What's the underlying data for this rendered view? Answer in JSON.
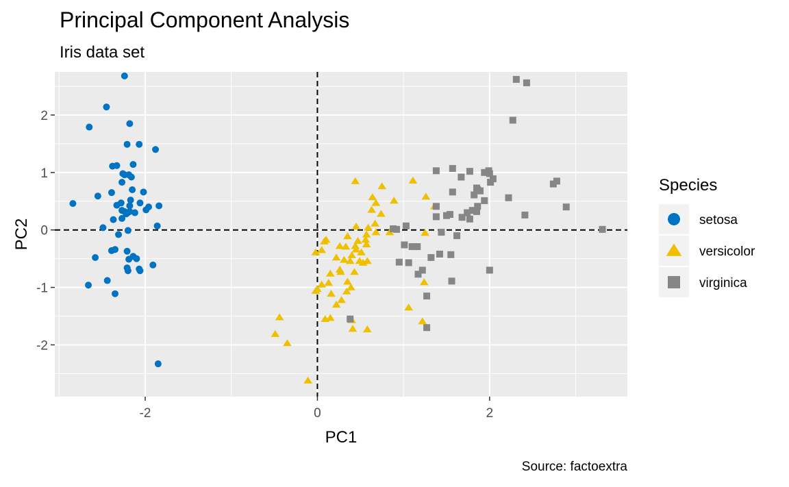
{
  "chart_data": {
    "type": "scatter",
    "title": "Principal Component Analysis",
    "subtitle": "Iris data set",
    "caption": "Source: factoextra",
    "xlabel": "PC1",
    "ylabel": "PC2",
    "xlim": [
      -3.05,
      3.6
    ],
    "ylim": [
      -2.9,
      2.75
    ],
    "x_ticks": [
      -2,
      0,
      2
    ],
    "x_tick_labels": [
      "-2",
      "0",
      "2"
    ],
    "y_ticks": [
      -2,
      -1,
      0,
      1,
      2
    ],
    "y_tick_labels": [
      "-2",
      "-1",
      "0",
      "1",
      "2"
    ],
    "reference_lines": {
      "x": 0,
      "y": 0,
      "style": "dashed"
    },
    "grid": true,
    "legend": {
      "title": "Species",
      "position": "right"
    },
    "series": [
      {
        "name": "setosa",
        "color": "#0073C2",
        "shape": "circle",
        "points": [
          [
            -2.24,
            2.68
          ],
          [
            -2.45,
            2.14
          ],
          [
            -2.18,
            1.85
          ],
          [
            -2.65,
            1.79
          ],
          [
            -2.21,
            1.49
          ],
          [
            -2.07,
            1.49
          ],
          [
            -1.88,
            1.4
          ],
          [
            -2.33,
            1.12
          ],
          [
            -2.38,
            1.11
          ],
          [
            -2.14,
            1.14
          ],
          [
            -2.19,
            0.96
          ],
          [
            -2.24,
            0.96
          ],
          [
            -2.16,
            0.92
          ],
          [
            -2.26,
            0.98
          ],
          [
            -2.27,
            0.83
          ],
          [
            -2.15,
            0.7
          ],
          [
            -2.02,
            0.66
          ],
          [
            -2.39,
            0.65
          ],
          [
            -2.55,
            0.59
          ],
          [
            -2.17,
            0.52
          ],
          [
            -2.06,
            0.47
          ],
          [
            -2.84,
            0.46
          ],
          [
            -2.28,
            0.47
          ],
          [
            -2.33,
            0.43
          ],
          [
            -2.18,
            0.42
          ],
          [
            -1.96,
            0.4
          ],
          [
            -1.99,
            0.35
          ],
          [
            -2.18,
            0.32
          ],
          [
            -2.12,
            0.3
          ],
          [
            -2.22,
            0.28
          ],
          [
            -2.27,
            0.2
          ],
          [
            -2.37,
            0.18
          ],
          [
            -2.21,
            0.29
          ],
          [
            -2.27,
            0.34
          ],
          [
            -1.84,
            0.42
          ],
          [
            -2.24,
            0.32
          ],
          [
            -1.86,
            0.07
          ],
          [
            -2.49,
            0.04
          ],
          [
            -2.2,
            -0.01
          ],
          [
            -2.31,
            -0.08
          ],
          [
            -2.39,
            -0.36
          ],
          [
            -2.35,
            -0.34
          ],
          [
            -2.21,
            -0.37
          ],
          [
            -2.58,
            -0.48
          ],
          [
            -2.14,
            -0.46
          ],
          [
            -2.19,
            -0.51
          ],
          [
            -2.1,
            -0.5
          ],
          [
            -2.21,
            -0.66
          ],
          [
            -1.91,
            -0.61
          ],
          [
            -2.07,
            -0.68
          ],
          [
            -2.06,
            -0.71
          ],
          [
            -2.2,
            -0.71
          ],
          [
            -2.44,
            -0.88
          ],
          [
            -2.66,
            -0.96
          ],
          [
            -2.35,
            -1.11
          ],
          [
            -1.85,
            -2.33
          ]
        ]
      },
      {
        "name": "versicolor",
        "color": "#EFC000",
        "shape": "triangle",
        "points": [
          [
            0.44,
            0.85
          ],
          [
            0.75,
            0.76
          ],
          [
            1.11,
            0.86
          ],
          [
            0.64,
            0.57
          ],
          [
            0.68,
            0.47
          ],
          [
            0.89,
            0.51
          ],
          [
            1.26,
            0.58
          ],
          [
            1.36,
            0.41
          ],
          [
            0.63,
            0.35
          ],
          [
            0.74,
            0.28
          ],
          [
            0.59,
            0.04
          ],
          [
            0.45,
            0.06
          ],
          [
            0.68,
            -0.04
          ],
          [
            0.84,
            -0.04
          ],
          [
            0.67,
            0.11
          ],
          [
            0.35,
            -0.11
          ],
          [
            1.25,
            -0.05
          ],
          [
            0.57,
            -0.08
          ],
          [
            0.47,
            -0.19
          ],
          [
            0.56,
            -0.17
          ],
          [
            0.1,
            -0.17
          ],
          [
            0.08,
            -0.2
          ],
          [
            0.26,
            -0.28
          ],
          [
            0.44,
            -0.28
          ],
          [
            0.57,
            -0.25
          ],
          [
            0.33,
            -0.29
          ],
          [
            -0.02,
            -0.39
          ],
          [
            0.05,
            -0.35
          ],
          [
            0.45,
            -0.34
          ],
          [
            0.51,
            -0.39
          ],
          [
            0.22,
            -0.48
          ],
          [
            0.4,
            -0.44
          ],
          [
            0.38,
            -0.54
          ],
          [
            0.49,
            -0.54
          ],
          [
            0.58,
            -0.54
          ],
          [
            0.53,
            -0.57
          ],
          [
            0.31,
            -0.52
          ],
          [
            0.26,
            -0.69
          ],
          [
            0.15,
            -0.76
          ],
          [
            0.27,
            -0.73
          ],
          [
            0.43,
            -0.73
          ],
          [
            0.13,
            -0.92
          ],
          [
            0.05,
            -0.95
          ],
          [
            0.35,
            -0.9
          ],
          [
            0.39,
            -1.0
          ],
          [
            1.24,
            -0.91
          ],
          [
            0.0,
            -1.03
          ],
          [
            -0.02,
            -1.06
          ],
          [
            0.34,
            -1.07
          ],
          [
            0.16,
            -1.11
          ],
          [
            0.28,
            -1.22
          ],
          [
            0.22,
            -1.3
          ],
          [
            1.06,
            -1.35
          ],
          [
            -0.44,
            -1.52
          ],
          [
            0.09,
            -1.55
          ],
          [
            0.15,
            -1.53
          ],
          [
            0.4,
            -1.57
          ],
          [
            1.22,
            -1.59
          ],
          [
            0.41,
            -1.72
          ],
          [
            0.58,
            -1.73
          ],
          [
            -0.49,
            -1.81
          ],
          [
            -0.35,
            -1.97
          ],
          [
            -0.11,
            -2.62
          ]
        ]
      },
      {
        "name": "virginica",
        "color": "#868686",
        "shape": "square",
        "points": [
          [
            2.31,
            2.62
          ],
          [
            2.43,
            2.56
          ],
          [
            2.27,
            1.91
          ],
          [
            1.57,
            1.07
          ],
          [
            1.38,
            1.03
          ],
          [
            1.77,
            1.02
          ],
          [
            1.99,
            1.03
          ],
          [
            2.0,
            0.98
          ],
          [
            1.94,
            1.0
          ],
          [
            1.67,
            0.92
          ],
          [
            2.04,
            0.89
          ],
          [
            2.01,
            0.83
          ],
          [
            1.85,
            0.73
          ],
          [
            2.78,
            0.85
          ],
          [
            2.74,
            0.8
          ],
          [
            1.89,
            0.68
          ],
          [
            1.86,
            0.7
          ],
          [
            1.57,
            0.66
          ],
          [
            1.82,
            0.61
          ],
          [
            2.22,
            0.56
          ],
          [
            1.94,
            0.51
          ],
          [
            2.89,
            0.4
          ],
          [
            1.38,
            0.41
          ],
          [
            1.86,
            0.41
          ],
          [
            2.41,
            0.26
          ],
          [
            1.54,
            0.27
          ],
          [
            1.5,
            0.25
          ],
          [
            1.38,
            0.23
          ],
          [
            1.77,
            0.19
          ],
          [
            1.8,
            0.34
          ],
          [
            1.74,
            0.3
          ],
          [
            1.68,
            0.22
          ],
          [
            1.85,
            0.32
          ],
          [
            1.03,
            0.07
          ],
          [
            0.92,
            0.01
          ],
          [
            0.88,
            0.02
          ],
          [
            1.44,
            -0.04
          ],
          [
            1.62,
            -0.1
          ],
          [
            3.31,
            0.01
          ],
          [
            1.01,
            -0.26
          ],
          [
            1.1,
            -0.29
          ],
          [
            1.16,
            -0.29
          ],
          [
            1.42,
            -0.42
          ],
          [
            1.55,
            -0.43
          ],
          [
            1.32,
            -0.48
          ],
          [
            0.95,
            -0.56
          ],
          [
            1.06,
            -0.57
          ],
          [
            1.22,
            -0.7
          ],
          [
            1.17,
            -0.77
          ],
          [
            2.0,
            -0.7
          ],
          [
            1.56,
            -0.89
          ],
          [
            1.27,
            -1.15
          ],
          [
            0.38,
            -1.55
          ],
          [
            1.27,
            -1.7
          ]
        ]
      }
    ]
  }
}
